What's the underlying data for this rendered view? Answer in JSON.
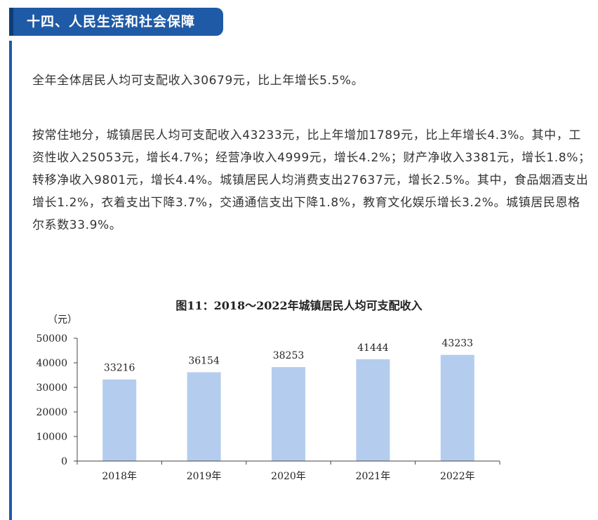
{
  "section": {
    "title": "十四、人民生活和社会保障"
  },
  "paragraphs": {
    "p1": "全年全体居民人均可支配收入30679元，比上年增长5.5%。",
    "p2": "按常住地分，城镇居民人均可支配收入43233元，比上年增加1789元，比上年增长4.3%。其中，工资性收入25053元，增长4.7%；经营净收入4999元，增长4.2%；财产净收入3381元，增长1.8%；转移净收入9801元，增长4.4%。城镇居民人均消费支出27637元，增长2.5%。其中，食品烟酒支出增长1.2%，衣着支出下降3.7%，交通通信支出下降1.8%，教育文化娱乐增长3.2%。城镇居民恩格尔系数33.9%。"
  },
  "colors": {
    "accent": "#1f5aa6",
    "bar": "#b4cdee"
  },
  "chart_data": {
    "type": "bar",
    "title": "图11：2018～2022年城镇居民人均可支配收入",
    "ylabel": "（元）",
    "xlabel": "",
    "categories": [
      "2018年",
      "2019年",
      "2020年",
      "2021年",
      "2022年"
    ],
    "values": [
      33216,
      36154,
      38253,
      41444,
      43233
    ],
    "data_labels": [
      "33216",
      "36154",
      "38253",
      "41444",
      "43233"
    ],
    "ylim": [
      0,
      50000
    ],
    "yticks": [
      0,
      10000,
      20000,
      30000,
      40000,
      50000
    ],
    "ytick_labels": [
      "0",
      "10000",
      "20000",
      "30000",
      "40000",
      "50000"
    ],
    "grid": false,
    "legend": "none"
  }
}
